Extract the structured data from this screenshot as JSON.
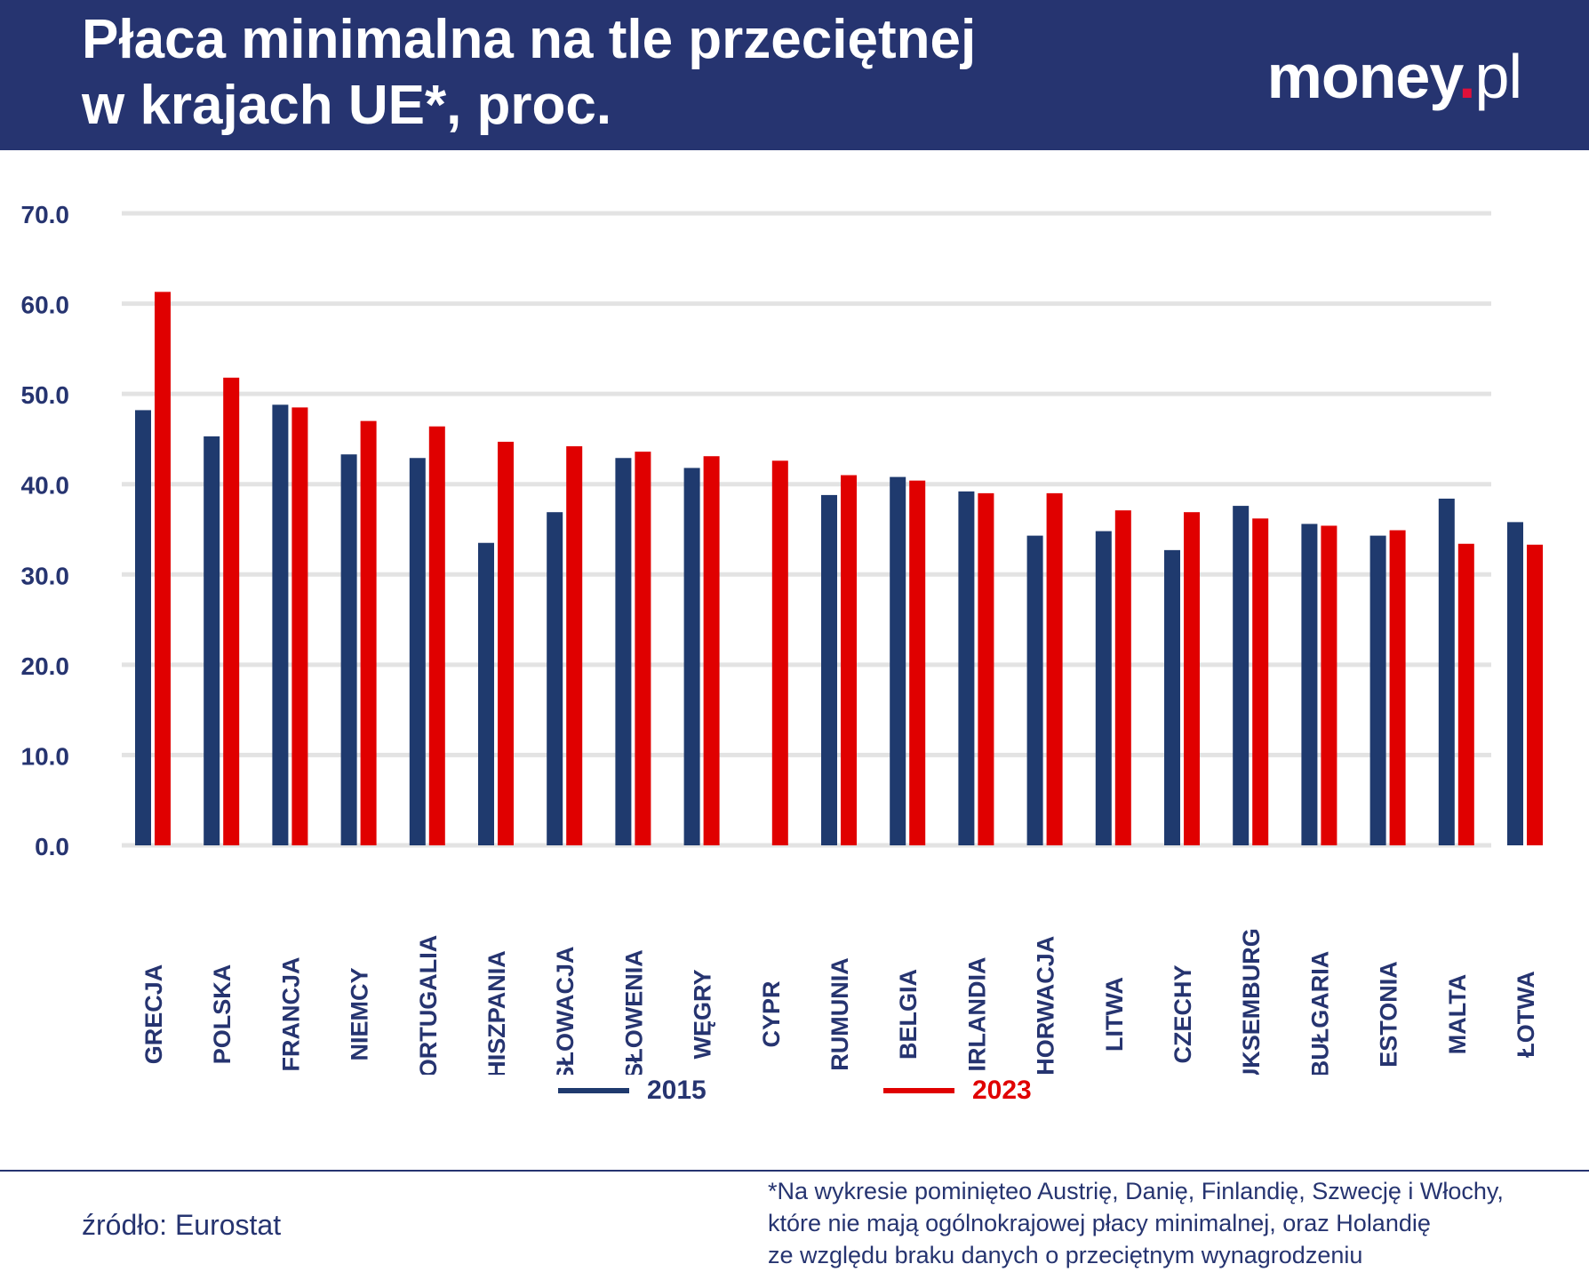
{
  "header": {
    "title_line1": "Płaca minimalna na tle przeciętnej",
    "title_line2": "w krajach UE*, proc.",
    "logo_text": "money.pl"
  },
  "colors": {
    "header": "#263470",
    "series_2015": "#1f3a6e",
    "series_2023": "#e00000",
    "grid": "#e3e3e3"
  },
  "chart_data": {
    "type": "bar",
    "title": "Płaca minimalna na tle przeciętnej w krajach UE*, proc.",
    "ylim": [
      0,
      70
    ],
    "yticks": [
      "0.0",
      "10.0",
      "20.0",
      "30.0",
      "40.0",
      "50.0",
      "60.0",
      "70.0"
    ],
    "grid": true,
    "legend_position": "bottom",
    "categories": [
      "GRECJA",
      "POLSKA",
      "FRANCJA",
      "NIEMCY",
      "PORTUGALIA",
      "HISZPANIA",
      "SŁOWACJA",
      "SŁOWENIA",
      "WĘGRY",
      "CYPR",
      "RUMUNIA",
      "BELGIA",
      "IRLANDIA",
      "CHORWACJA",
      "LITWA",
      "CZECHY",
      "LUKSEMBURG",
      "BUŁGARIA",
      "ESTONIA",
      "MALTA",
      "ŁOTWA"
    ],
    "series": [
      {
        "name": "2015",
        "color": "#1f3a6e",
        "values": [
          48.2,
          45.3,
          48.8,
          43.3,
          42.9,
          33.5,
          36.9,
          42.9,
          41.8,
          null,
          38.8,
          40.8,
          39.2,
          34.3,
          34.8,
          32.7,
          37.6,
          35.6,
          34.3,
          38.4,
          35.8
        ]
      },
      {
        "name": "2023",
        "color": "#e00000",
        "values": [
          61.3,
          51.8,
          48.5,
          47.0,
          46.4,
          44.7,
          44.2,
          43.6,
          43.1,
          42.6,
          41.0,
          40.4,
          39.0,
          39.0,
          37.1,
          36.9,
          36.2,
          35.4,
          34.9,
          33.4,
          33.3
        ]
      }
    ]
  },
  "footer": {
    "source": "źródło: Eurostat",
    "note_lines": [
      "*Na wykresie pominięteo Austrię, Danię, Finlandię, Szwecję i Włochy,",
      "które nie mają ogólnokrajowej płacy minimalnej, oraz Holandię",
      "ze względu braku danych o przeciętnym wynagrodzeniu"
    ]
  }
}
